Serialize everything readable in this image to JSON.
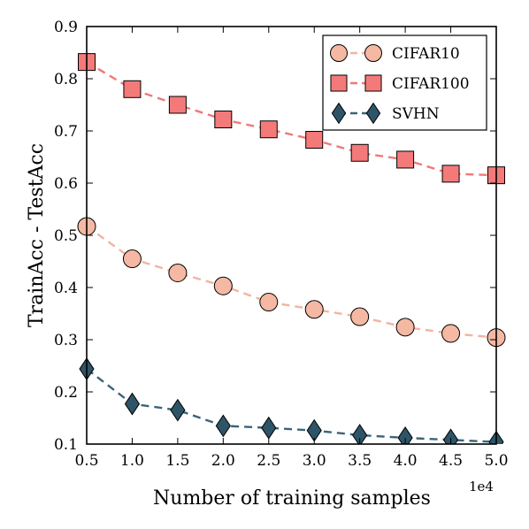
{
  "chart_data": {
    "type": "line",
    "xlabel": "Number of training samples",
    "ylabel": "TrainAcc - TestAcc",
    "x_offset_label": "1e4",
    "xlim": [
      0.5,
      5.0
    ],
    "ylim": [
      0.1,
      0.9
    ],
    "x_ticks": [
      "0.5",
      "1.0",
      "1.5",
      "2.0",
      "2.5",
      "3.0",
      "3.5",
      "4.0",
      "4.5",
      "5.0"
    ],
    "y_ticks": [
      "0.1",
      "0.2",
      "0.3",
      "0.4",
      "0.5",
      "0.6",
      "0.7",
      "0.8",
      "0.9"
    ],
    "grid": false,
    "legend_position": "top-right",
    "x": [
      0.5,
      1.0,
      1.5,
      2.0,
      2.5,
      3.0,
      3.5,
      4.0,
      4.5,
      5.0
    ],
    "series": [
      {
        "name": "CIFAR10",
        "marker": "circle",
        "color": "#f4b8a3",
        "line_color": "#f2b4a2",
        "values": [
          0.517,
          0.455,
          0.428,
          0.403,
          0.372,
          0.358,
          0.344,
          0.324,
          0.312,
          0.304
        ]
      },
      {
        "name": "CIFAR100",
        "marker": "square",
        "color": "#f47a7a",
        "line_color": "#f07878",
        "values": [
          0.832,
          0.78,
          0.75,
          0.722,
          0.703,
          0.683,
          0.658,
          0.645,
          0.618,
          0.615
        ]
      },
      {
        "name": "SVHN",
        "marker": "diamond",
        "color": "#2e5468",
        "line_color": "#3a6478",
        "values": [
          0.244,
          0.177,
          0.165,
          0.135,
          0.131,
          0.126,
          0.117,
          0.112,
          0.108,
          0.104
        ]
      }
    ]
  }
}
